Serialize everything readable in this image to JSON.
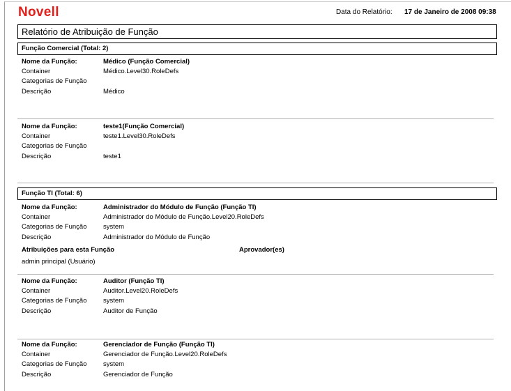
{
  "header": {
    "logo": "Novell",
    "date_label": "Data do Relatório:",
    "date_value": "17 de Janeiro de 2008 09:38",
    "brand_color": "#e0201b"
  },
  "report_title": "Relatório de Atribuição de Função",
  "labels": {
    "name": "Nome da Função:",
    "container": "Container",
    "categories": "Categorias de Função",
    "description": "Descrição",
    "assignments": "Atribuições para esta Função",
    "approvers": "Aprovador(es)"
  },
  "sections": [
    {
      "title": "Função Comercial (Total: 2)",
      "roles": [
        {
          "name": "Médico (Função Comercial)",
          "container": "Médico.Level30.RoleDefs",
          "categories": "",
          "description": "Médico"
        },
        {
          "name": "teste1(Função Comercial)",
          "container": "teste1.Level30.RoleDefs",
          "categories": "",
          "description": "teste1"
        }
      ]
    },
    {
      "title": "Função TI (Total: 6)",
      "roles": [
        {
          "name": "Administrador do Módulo de Função (Função TI)",
          "container": "Administrador do Módulo de Função.Level20.RoleDefs",
          "categories": "system",
          "description": "Administrador do Módulo de Função",
          "assignments": [
            "admin principal (Usuário)"
          ]
        },
        {
          "name": "Auditor (Função TI)",
          "container": "Auditor.Level20.RoleDefs",
          "categories": "system",
          "description": "Auditor de Função"
        },
        {
          "name": "Gerenciador de Função (Função TI)",
          "container": "Gerenciador de Função.Level20.RoleDefs",
          "categories": "system",
          "description": "Gerenciador de Função"
        }
      ]
    }
  ]
}
